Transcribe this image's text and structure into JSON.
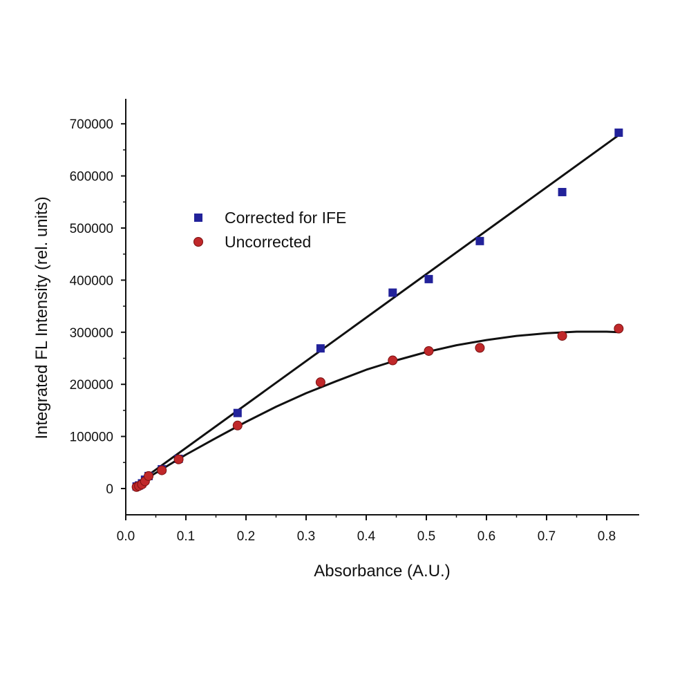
{
  "chart_data": {
    "type": "scatter",
    "title": "",
    "xlabel": "Absorbance (A.U.)",
    "ylabel": "Integrated FL Intensity (rel. units)",
    "xlim": [
      0.0,
      0.83
    ],
    "ylim": [
      -50000,
      750000
    ],
    "x_ticks": [
      0.0,
      0.1,
      0.2,
      0.3,
      0.4,
      0.5,
      0.6,
      0.7,
      0.8
    ],
    "x_tick_labels": [
      "0.0",
      "0.1",
      "0.2",
      "0.3",
      "0.4",
      "0.5",
      "0.6",
      "0.7",
      "0.8"
    ],
    "y_ticks": [
      0,
      100000,
      200000,
      300000,
      400000,
      500000,
      600000,
      700000
    ],
    "y_tick_labels": [
      "0",
      "100000",
      "200000",
      "300000",
      "400000",
      "500000",
      "600000",
      "700000"
    ],
    "grid": false,
    "legend_position": "upper-left",
    "series": [
      {
        "name": "Corrected for IFE",
        "marker": "square",
        "color": "#22229a",
        "points": [
          [
            0.018,
            4000
          ],
          [
            0.022,
            6000
          ],
          [
            0.027,
            10000
          ],
          [
            0.032,
            17000
          ],
          [
            0.038,
            24000
          ],
          [
            0.06,
            37000
          ],
          [
            0.088,
            57000
          ],
          [
            0.186,
            145000
          ],
          [
            0.324,
            269000
          ],
          [
            0.444,
            376000
          ],
          [
            0.504,
            402000
          ],
          [
            0.589,
            475000
          ],
          [
            0.726,
            569000
          ],
          [
            0.82,
            683000
          ]
        ],
        "fit": {
          "kind": "linear",
          "from": [
            0.018,
            9500
          ],
          "to": [
            0.822,
            680000
          ]
        }
      },
      {
        "name": "Uncorrected",
        "marker": "circle",
        "color": "#c0282a",
        "points": [
          [
            0.018,
            3000
          ],
          [
            0.022,
            5000
          ],
          [
            0.027,
            8000
          ],
          [
            0.032,
            14000
          ],
          [
            0.038,
            24000
          ],
          [
            0.06,
            35000
          ],
          [
            0.088,
            56000
          ],
          [
            0.186,
            121000
          ],
          [
            0.324,
            204000
          ],
          [
            0.444,
            246000
          ],
          [
            0.504,
            264000
          ],
          [
            0.589,
            270000
          ],
          [
            0.726,
            293000
          ],
          [
            0.82,
            307000
          ]
        ],
        "fit": {
          "kind": "curve",
          "points": [
            [
              0.018,
              7000
            ],
            [
              0.05,
              30000
            ],
            [
              0.1,
              65000
            ],
            [
              0.15,
              97000
            ],
            [
              0.2,
              128000
            ],
            [
              0.25,
              157000
            ],
            [
              0.3,
              183000
            ],
            [
              0.35,
              206000
            ],
            [
              0.4,
              228000
            ],
            [
              0.45,
              246000
            ],
            [
              0.5,
              262000
            ],
            [
              0.55,
              275000
            ],
            [
              0.6,
              285000
            ],
            [
              0.65,
              293000
            ],
            [
              0.7,
              298000
            ],
            [
              0.75,
              301000
            ],
            [
              0.8,
              301000
            ],
            [
              0.822,
              300000
            ]
          ]
        }
      }
    ]
  }
}
